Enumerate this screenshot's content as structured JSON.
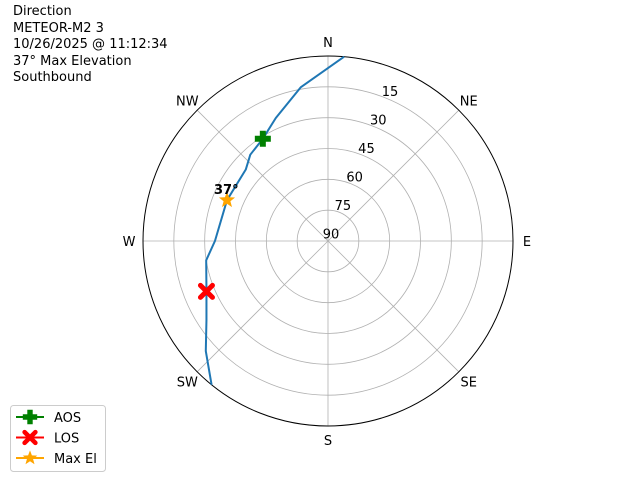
{
  "title_lines": [
    "Direction",
    "METEOR-M2 3",
    "10/26/2025 @ 11:12:34",
    "37° Max Elevation",
    "Southbound"
  ],
  "chart_data": {
    "type": "polar-line",
    "theta_direction": "clockwise",
    "theta_zero": "N",
    "direction_labels": [
      "N",
      "NE",
      "E",
      "SE",
      "S",
      "SW",
      "W",
      "NW"
    ],
    "radial_tick_labels": [
      "15",
      "30",
      "45",
      "60",
      "75",
      "90"
    ],
    "radial_axis": "elevation (deg), 90 at center, 0 at edge",
    "grid": true,
    "path": {
      "color": "#1f77b4",
      "points_az_el": [
        [
          5,
          0
        ],
        [
          350,
          14
        ],
        [
          337,
          25
        ],
        [
          327.5,
          31
        ],
        [
          318,
          33.5
        ],
        [
          311,
          37
        ],
        [
          292,
          37
        ],
        [
          270,
          35
        ],
        [
          261,
          30
        ],
        [
          247.5,
          26
        ],
        [
          237,
          19.5
        ],
        [
          228,
          10
        ],
        [
          219,
          0
        ]
      ]
    },
    "markers": [
      {
        "name": "AOS",
        "az": 327.5,
        "el": 31,
        "color": "#008000",
        "shape": "plus"
      },
      {
        "name": "LOS",
        "az": 247.5,
        "el": 26,
        "color": "#ff0000",
        "shape": "x"
      },
      {
        "name": "Max El",
        "az": 292,
        "el": 37,
        "color": "#ffa500",
        "shape": "star"
      }
    ],
    "annotation": "37°",
    "legend": {
      "placement": "bottom-left",
      "entries": [
        "AOS",
        "LOS",
        "Max El"
      ]
    }
  }
}
